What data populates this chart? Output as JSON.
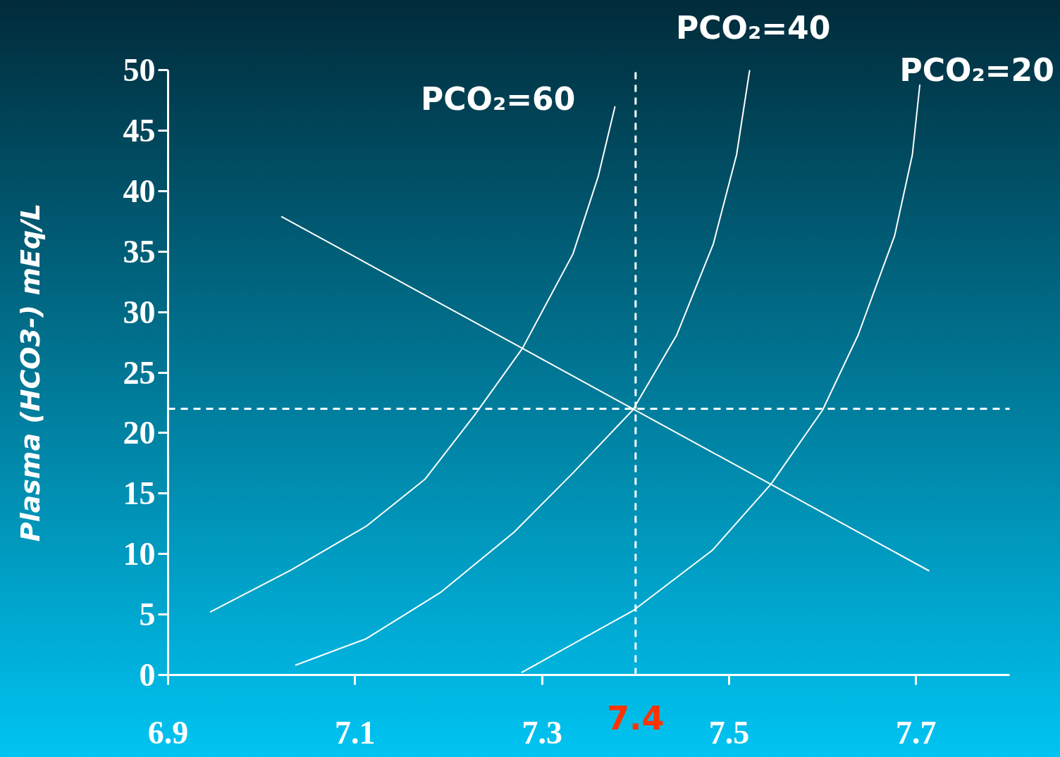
{
  "chart_data": {
    "type": "line",
    "ylabel": "Plasma (HCO3-) mEq/L",
    "xlim": [
      6.9,
      7.8
    ],
    "xticks": [
      6.9,
      7.1,
      7.3,
      7.5,
      7.7
    ],
    "ylim": [
      0,
      50
    ],
    "yticks": [
      0,
      5,
      10,
      15,
      20,
      25,
      30,
      35,
      40,
      45,
      50
    ],
    "grid": false,
    "marker": "none",
    "line_style": "solid",
    "series": [
      {
        "name": "PCO₂=60",
        "color": "#ffffff",
        "x": [
          6.945,
          7.032,
          7.112,
          7.175,
          7.228,
          7.279,
          7.333,
          7.36,
          7.378
        ],
        "values": [
          5.2,
          8.7,
          12.3,
          16.2,
          21.5,
          27.0,
          34.8,
          41.2,
          47.0
        ]
      },
      {
        "name": "PCO₂=40",
        "color": "#ffffff",
        "x": [
          7.036,
          7.112,
          7.191,
          7.27,
          7.333,
          7.397,
          7.444,
          7.483,
          7.508,
          7.522
        ],
        "values": [
          0.8,
          3.0,
          6.8,
          11.8,
          16.7,
          21.9,
          28.1,
          35.6,
          43.0,
          50.0
        ]
      },
      {
        "name": "PCO₂=20",
        "color": "#ffffff",
        "x": [
          7.278,
          7.397,
          7.482,
          7.545,
          7.6,
          7.638,
          7.677,
          7.696,
          7.704
        ],
        "values": [
          0.2,
          5.3,
          10.3,
          15.8,
          21.9,
          28.1,
          36.3,
          43.0,
          48.8
        ]
      },
      {
        "color": "#ffffff",
        "x": [
          7.021,
          7.714
        ],
        "values": [
          37.9,
          8.6
        ]
      }
    ],
    "ref_lines": [
      {
        "axis": "x",
        "value": 7.4,
        "label": "7.4",
        "color": "#ffffff",
        "line_style": "dashed"
      },
      {
        "axis": "y",
        "value": 22,
        "color": "#ffffff",
        "line_style": "dashed"
      }
    ]
  }
}
